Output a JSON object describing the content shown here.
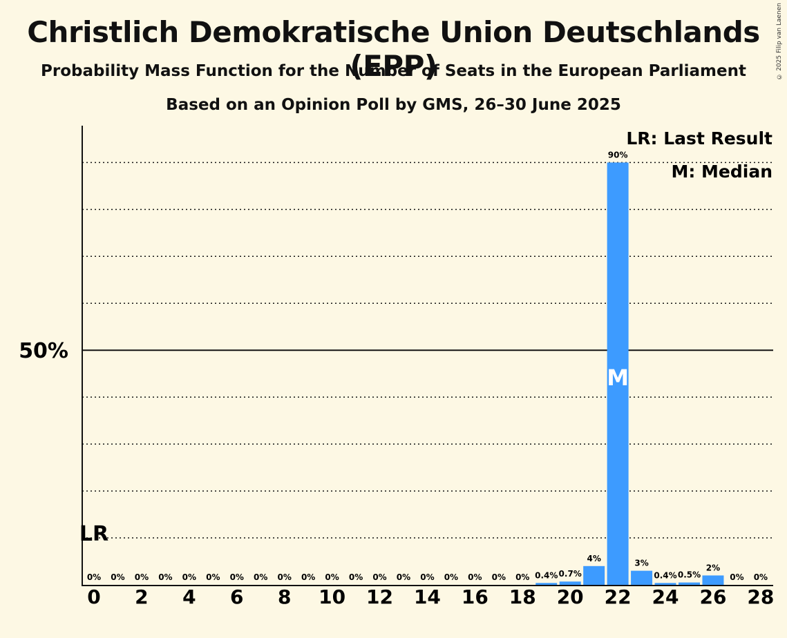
{
  "title": "Christlich Demokratische Union Deutschlands (EPP)",
  "subtitle": "Probability Mass Function for the Number of Seats in the European Parliament",
  "subtitle2": "Based on an Opinion Poll by GMS, 26–30 June 2025",
  "copyright": "© 2025 Filip van Laenen",
  "legend": {
    "lr": "LR: Last Result",
    "median": "M: Median"
  },
  "markers": {
    "last_result_label": "LR",
    "last_result_seat": 0,
    "median_label": "M",
    "median_seat": 22
  },
  "colors": {
    "bar": "#3d9bff",
    "background": "#fdf8e4",
    "text": "#111111"
  },
  "chart_data": {
    "type": "bar",
    "x": [
      0,
      1,
      2,
      3,
      4,
      5,
      6,
      7,
      8,
      9,
      10,
      11,
      12,
      13,
      14,
      15,
      16,
      17,
      18,
      19,
      20,
      21,
      22,
      23,
      24,
      25,
      26,
      27,
      28
    ],
    "values": [
      0,
      0,
      0,
      0,
      0,
      0,
      0,
      0,
      0,
      0,
      0,
      0,
      0,
      0,
      0,
      0,
      0,
      0,
      0,
      0.4,
      0.7,
      4,
      90,
      3,
      0.4,
      0.5,
      2,
      0,
      0
    ],
    "value_labels": [
      "0%",
      "0%",
      "0%",
      "0%",
      "0%",
      "0%",
      "0%",
      "0%",
      "0%",
      "0%",
      "0%",
      "0%",
      "0%",
      "0%",
      "0%",
      "0%",
      "0%",
      "0%",
      "0%",
      "0.4%",
      "0.7%",
      "4%",
      "90%",
      "3%",
      "0.4%",
      "0.5%",
      "2%",
      "0%",
      "0%"
    ],
    "x_ticks": [
      0,
      2,
      4,
      6,
      8,
      10,
      12,
      14,
      16,
      18,
      20,
      22,
      24,
      26,
      28
    ],
    "y_ticks": [
      {
        "value": 50,
        "label": "50%"
      }
    ],
    "ylim": [
      0,
      98
    ],
    "grid": {
      "dotted_every": 10,
      "solid_at": 50
    }
  }
}
